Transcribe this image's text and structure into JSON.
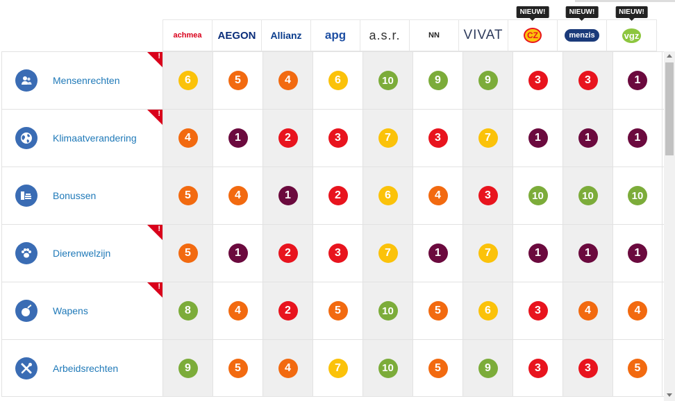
{
  "badge_label": "NIEUW!",
  "colors": {
    "1": "#6b0a3e",
    "2": "#e8141e",
    "3": "#e8141e",
    "4": "#f26a10",
    "5": "#f26a10",
    "6": "#fbc20a",
    "7": "#fbc20a",
    "8": "#7cac3a",
    "9": "#7cac3a",
    "10": "#7cac3a",
    "icon": "#3a6cb4",
    "link": "#1f79b8"
  },
  "insurers": [
    {
      "name": "achmea",
      "color": "#d9001b",
      "new": false
    },
    {
      "name": "AEGON",
      "color": "#0a2d7a",
      "new": false
    },
    {
      "name": "Allianz",
      "color": "#0a3c8c",
      "new": false
    },
    {
      "name": "apg",
      "color": "#1e4fa3",
      "new": false
    },
    {
      "name": "a.s.r.",
      "color": "#333333",
      "new": false
    },
    {
      "name": "NN",
      "color": "#f06400",
      "new": false
    },
    {
      "name": "VIVAT",
      "color": "#2e3b5c",
      "new": false
    },
    {
      "name": "CZ",
      "color": "#e8141e",
      "new": true
    },
    {
      "name": "menzis",
      "color": "#1a3a7a",
      "new": true
    },
    {
      "name": "vgz",
      "color": "#8dc63f",
      "new": true
    }
  ],
  "topics": [
    {
      "label": "Mensenrechten",
      "icon": "people-icon",
      "flag": true,
      "scores": [
        6,
        5,
        4,
        6,
        10,
        9,
        9,
        3,
        3,
        1
      ]
    },
    {
      "label": "Klimaatverandering",
      "icon": "globe-icon",
      "flag": true,
      "scores": [
        4,
        1,
        2,
        3,
        7,
        3,
        7,
        1,
        1,
        1
      ]
    },
    {
      "label": "Bonussen",
      "icon": "coins-icon",
      "flag": false,
      "scores": [
        5,
        4,
        1,
        2,
        6,
        4,
        3,
        10,
        10,
        10
      ]
    },
    {
      "label": "Dierenwelzijn",
      "icon": "paw-icon",
      "flag": true,
      "scores": [
        5,
        1,
        2,
        3,
        7,
        1,
        7,
        1,
        1,
        1
      ]
    },
    {
      "label": "Wapens",
      "icon": "bomb-icon",
      "flag": true,
      "scores": [
        8,
        4,
        2,
        5,
        10,
        5,
        6,
        3,
        4,
        4
      ]
    },
    {
      "label": "Arbeidsrechten",
      "icon": "tools-icon",
      "flag": false,
      "scores": [
        9,
        5,
        4,
        7,
        10,
        5,
        9,
        3,
        3,
        5
      ]
    }
  ]
}
